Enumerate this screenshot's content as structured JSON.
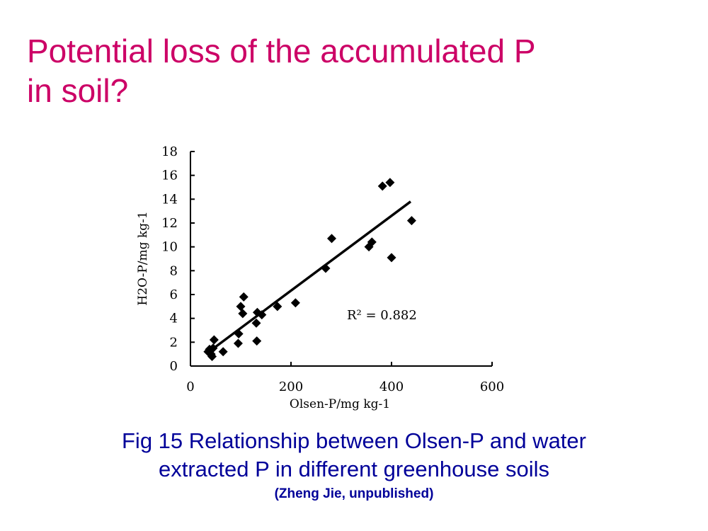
{
  "slide": {
    "title_line1": "Potential loss of the accumulated P",
    "title_line2": "in soil?",
    "title_color": "#cc0066"
  },
  "caption": {
    "line1": "Fig 15 Relationship between Olsen-P and water",
    "line2": "extracted P in different greenhouse soils",
    "source": "(Zheng Jie, unpublished)",
    "color": "#000099"
  },
  "chart_data": {
    "type": "scatter",
    "title": "",
    "xlabel": "Olsen-P/mg kg-1",
    "ylabel": "H2O-P/mg kg-1",
    "xlim": [
      0,
      600
    ],
    "ylim": [
      0,
      18
    ],
    "xticks": [
      0,
      200,
      400,
      600
    ],
    "yticks": [
      0,
      2,
      4,
      6,
      8,
      10,
      12,
      14,
      16,
      18
    ],
    "grid": false,
    "legend": "none",
    "marker": "diamond",
    "marker_color": "#000000",
    "annotation": "R² = 0.882",
    "trendline": {
      "x": [
        40,
        438
      ],
      "y": [
        1.3,
        13.8
      ]
    },
    "points": [
      {
        "x": 35,
        "y": 1.2
      },
      {
        "x": 38,
        "y": 1.4
      },
      {
        "x": 41,
        "y": 1.0
      },
      {
        "x": 43,
        "y": 0.8
      },
      {
        "x": 45,
        "y": 1.5
      },
      {
        "x": 47,
        "y": 2.2
      },
      {
        "x": 65,
        "y": 1.2
      },
      {
        "x": 95,
        "y": 1.9
      },
      {
        "x": 96,
        "y": 2.7
      },
      {
        "x": 100,
        "y": 5.0
      },
      {
        "x": 104,
        "y": 4.4
      },
      {
        "x": 106,
        "y": 5.8
      },
      {
        "x": 131,
        "y": 3.6
      },
      {
        "x": 132,
        "y": 2.1
      },
      {
        "x": 133,
        "y": 4.5
      },
      {
        "x": 142,
        "y": 4.3
      },
      {
        "x": 173,
        "y": 5.0
      },
      {
        "x": 209,
        "y": 5.3
      },
      {
        "x": 269,
        "y": 8.2
      },
      {
        "x": 281,
        "y": 10.7
      },
      {
        "x": 355,
        "y": 10.0
      },
      {
        "x": 361,
        "y": 10.4
      },
      {
        "x": 382,
        "y": 15.1
      },
      {
        "x": 397,
        "y": 15.4
      },
      {
        "x": 400,
        "y": 9.1
      },
      {
        "x": 440,
        "y": 12.2
      }
    ]
  }
}
